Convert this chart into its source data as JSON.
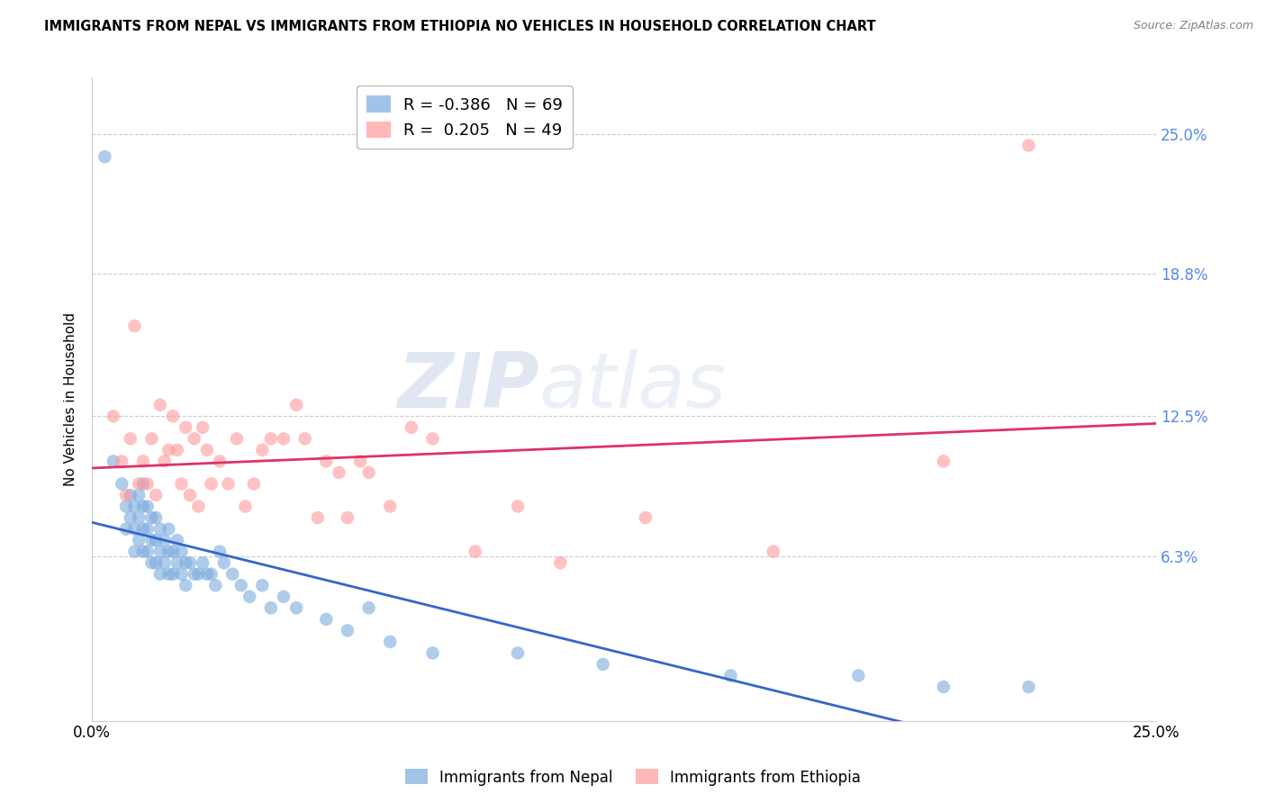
{
  "title": "IMMIGRANTS FROM NEPAL VS IMMIGRANTS FROM ETHIOPIA NO VEHICLES IN HOUSEHOLD CORRELATION CHART",
  "source": "Source: ZipAtlas.com",
  "ylabel": "No Vehicles in Household",
  "ytick_labels": [
    "25.0%",
    "18.8%",
    "12.5%",
    "6.3%"
  ],
  "ytick_values": [
    0.25,
    0.188,
    0.125,
    0.063
  ],
  "xlim": [
    0.0,
    0.25
  ],
  "ylim": [
    -0.01,
    0.275
  ],
  "nepal_R": -0.386,
  "nepal_N": 69,
  "ethiopia_R": 0.205,
  "ethiopia_N": 49,
  "nepal_color": "#7aaadd",
  "ethiopia_color": "#ff9999",
  "nepal_line_color": "#3366cc",
  "ethiopia_line_color": "#dd3366",
  "watermark_zip": "ZIP",
  "watermark_atlas": "atlas",
  "legend_label_nepal": "Immigrants from Nepal",
  "legend_label_ethiopia": "Immigrants from Ethiopia",
  "nepal_x": [
    0.003,
    0.005,
    0.007,
    0.008,
    0.008,
    0.009,
    0.009,
    0.01,
    0.01,
    0.01,
    0.011,
    0.011,
    0.011,
    0.012,
    0.012,
    0.012,
    0.012,
    0.013,
    0.013,
    0.013,
    0.014,
    0.014,
    0.014,
    0.015,
    0.015,
    0.015,
    0.016,
    0.016,
    0.016,
    0.017,
    0.017,
    0.018,
    0.018,
    0.018,
    0.019,
    0.019,
    0.02,
    0.02,
    0.021,
    0.021,
    0.022,
    0.022,
    0.023,
    0.024,
    0.025,
    0.026,
    0.027,
    0.028,
    0.029,
    0.03,
    0.031,
    0.033,
    0.035,
    0.037,
    0.04,
    0.042,
    0.045,
    0.048,
    0.055,
    0.06,
    0.065,
    0.07,
    0.08,
    0.1,
    0.12,
    0.15,
    0.18,
    0.2,
    0.22
  ],
  "nepal_y": [
    0.24,
    0.105,
    0.095,
    0.085,
    0.075,
    0.09,
    0.08,
    0.085,
    0.075,
    0.065,
    0.09,
    0.08,
    0.07,
    0.095,
    0.085,
    0.075,
    0.065,
    0.085,
    0.075,
    0.065,
    0.08,
    0.07,
    0.06,
    0.08,
    0.07,
    0.06,
    0.075,
    0.065,
    0.055,
    0.07,
    0.06,
    0.075,
    0.065,
    0.055,
    0.065,
    0.055,
    0.07,
    0.06,
    0.065,
    0.055,
    0.06,
    0.05,
    0.06,
    0.055,
    0.055,
    0.06,
    0.055,
    0.055,
    0.05,
    0.065,
    0.06,
    0.055,
    0.05,
    0.045,
    0.05,
    0.04,
    0.045,
    0.04,
    0.035,
    0.03,
    0.04,
    0.025,
    0.02,
    0.02,
    0.015,
    0.01,
    0.01,
    0.005,
    0.005
  ],
  "ethiopia_x": [
    0.005,
    0.007,
    0.008,
    0.009,
    0.01,
    0.011,
    0.012,
    0.013,
    0.014,
    0.015,
    0.016,
    0.017,
    0.018,
    0.019,
    0.02,
    0.021,
    0.022,
    0.023,
    0.024,
    0.025,
    0.026,
    0.027,
    0.028,
    0.03,
    0.032,
    0.034,
    0.036,
    0.038,
    0.04,
    0.042,
    0.045,
    0.048,
    0.05,
    0.053,
    0.055,
    0.058,
    0.06,
    0.063,
    0.065,
    0.07,
    0.075,
    0.08,
    0.09,
    0.1,
    0.11,
    0.13,
    0.16,
    0.2,
    0.22
  ],
  "ethiopia_y": [
    0.125,
    0.105,
    0.09,
    0.115,
    0.165,
    0.095,
    0.105,
    0.095,
    0.115,
    0.09,
    0.13,
    0.105,
    0.11,
    0.125,
    0.11,
    0.095,
    0.12,
    0.09,
    0.115,
    0.085,
    0.12,
    0.11,
    0.095,
    0.105,
    0.095,
    0.115,
    0.085,
    0.095,
    0.11,
    0.115,
    0.115,
    0.13,
    0.115,
    0.08,
    0.105,
    0.1,
    0.08,
    0.105,
    0.1,
    0.085,
    0.12,
    0.115,
    0.065,
    0.085,
    0.06,
    0.08,
    0.065,
    0.105,
    0.245
  ]
}
